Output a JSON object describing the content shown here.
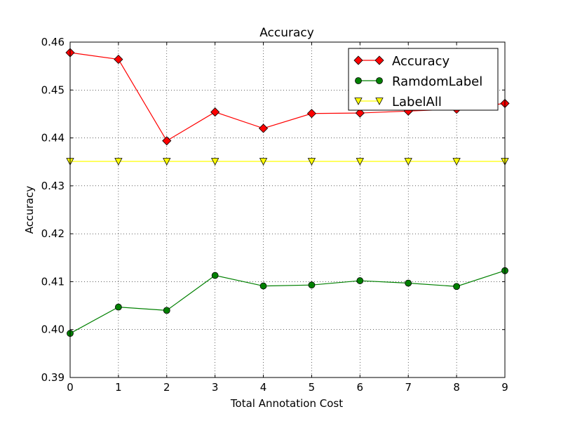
{
  "chart_data": {
    "type": "line",
    "title": "Accuracy",
    "xlabel": "Total Annotation Cost",
    "ylabel": "Accuracy",
    "xlim": [
      0,
      9
    ],
    "ylim": [
      0.39,
      0.46
    ],
    "xticks": [
      0,
      1,
      2,
      3,
      4,
      5,
      6,
      7,
      8,
      9
    ],
    "xtick_labels": [
      "0",
      "1",
      "2",
      "3",
      "4",
      "5",
      "6",
      "7",
      "8",
      "9"
    ],
    "yticks": [
      0.39,
      0.4,
      0.41,
      0.42,
      0.43,
      0.44,
      0.45,
      0.46
    ],
    "ytick_labels": [
      "0.39",
      "0.40",
      "0.41",
      "0.42",
      "0.43",
      "0.44",
      "0.45",
      "0.46"
    ],
    "grid": true,
    "legend_position": "top-right",
    "x": [
      0,
      1,
      2,
      3,
      4,
      5,
      6,
      7,
      8,
      9
    ],
    "series": [
      {
        "name": "Accuracy",
        "color": "#ff0000",
        "marker": "diamond",
        "values": [
          0.4578,
          0.4564,
          0.4394,
          0.4454,
          0.442,
          0.4451,
          0.4452,
          0.4456,
          0.446,
          0.4472
        ]
      },
      {
        "name": "RamdomLabel",
        "color": "#008000",
        "marker": "circle",
        "values": [
          0.3992,
          0.4047,
          0.404,
          0.4113,
          0.4091,
          0.4093,
          0.4102,
          0.4097,
          0.409,
          0.4123
        ]
      },
      {
        "name": "LabelAll",
        "color": "#ffff00",
        "marker": "triangle-down",
        "values": [
          0.4351,
          0.4351,
          0.4351,
          0.4351,
          0.4351,
          0.4351,
          0.4351,
          0.4351,
          0.4351,
          0.4351
        ]
      }
    ]
  }
}
